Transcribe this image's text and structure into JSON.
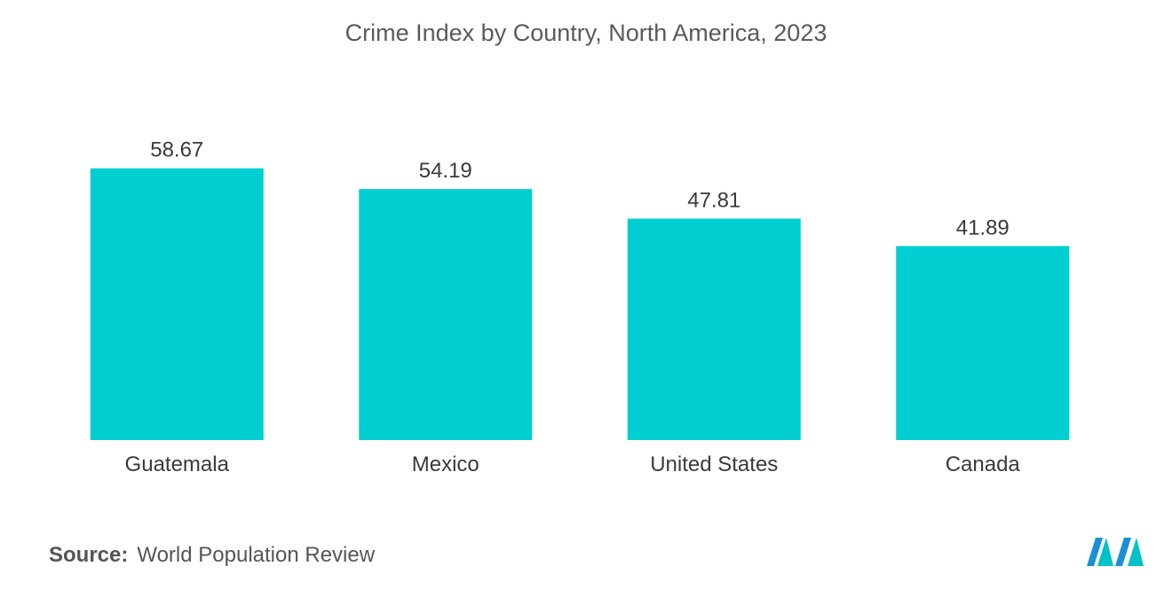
{
  "chart_data": {
    "type": "bar",
    "title": "Crime Index by Country, North America, 2023",
    "xlabel": "",
    "ylabel": "",
    "categories": [
      "Guatemala",
      "Mexico",
      "United States",
      "Canada"
    ],
    "values": [
      58.67,
      54.19,
      47.81,
      41.89
    ],
    "value_labels": [
      "58.67",
      "54.19",
      "47.81",
      "41.89"
    ],
    "ylim": [
      0,
      60
    ],
    "grid": false,
    "legend": "none",
    "colors": {
      "bar": "#00CED1"
    }
  },
  "footer": {
    "source_label": "Source:",
    "source_text": "World Population Review"
  },
  "logo": {
    "icon": "mordor-intelligence-logo-icon",
    "colors": [
      "#1a8fd6",
      "#00c2c7"
    ]
  }
}
